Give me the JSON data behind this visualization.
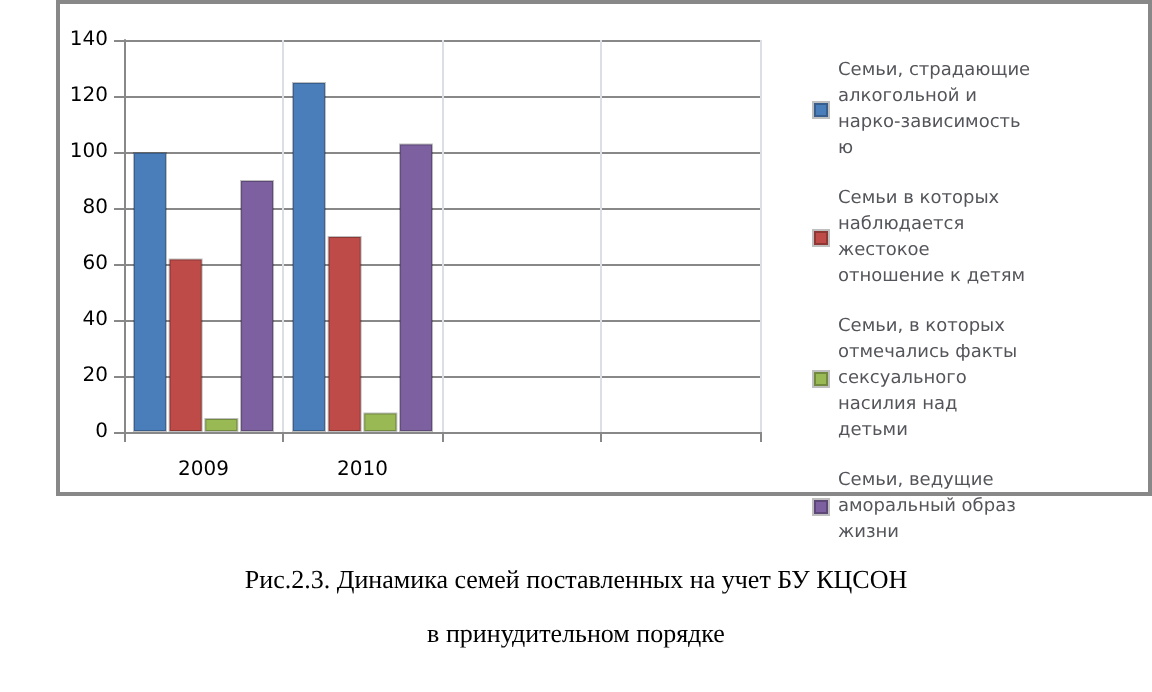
{
  "chart_data": {
    "type": "bar",
    "categories": [
      "2009",
      "2010",
      null,
      null
    ],
    "series": [
      {
        "name": "Семьи, страдающие алкогольной и нарко-зависимостью",
        "color": "#4a7ebb",
        "values": [
          100,
          125,
          null,
          null
        ]
      },
      {
        "name": "Семьи в которых наблюдается жестокое отношение к детям",
        "color": "#be4b48",
        "values": [
          62,
          70,
          null,
          null
        ]
      },
      {
        "name": "Семьи, в которых отмечались факты сексуального насилия над детьми",
        "color": "#98b954",
        "values": [
          5,
          7,
          null,
          null
        ]
      },
      {
        "name": "Семьи, ведущие аморальный образ жизни",
        "color": "#7d60a0",
        "values": [
          90,
          103,
          null,
          null
        ]
      }
    ],
    "ylim": [
      0,
      140
    ],
    "yticks": [
      0,
      20,
      40,
      60,
      80,
      100,
      120,
      140
    ],
    "grid": true,
    "legend": "right",
    "annotations": [
      "Рис.2.3. Динамика семей поставленных на учет БУ КЦСОН",
      "в принудительном порядке"
    ]
  }
}
